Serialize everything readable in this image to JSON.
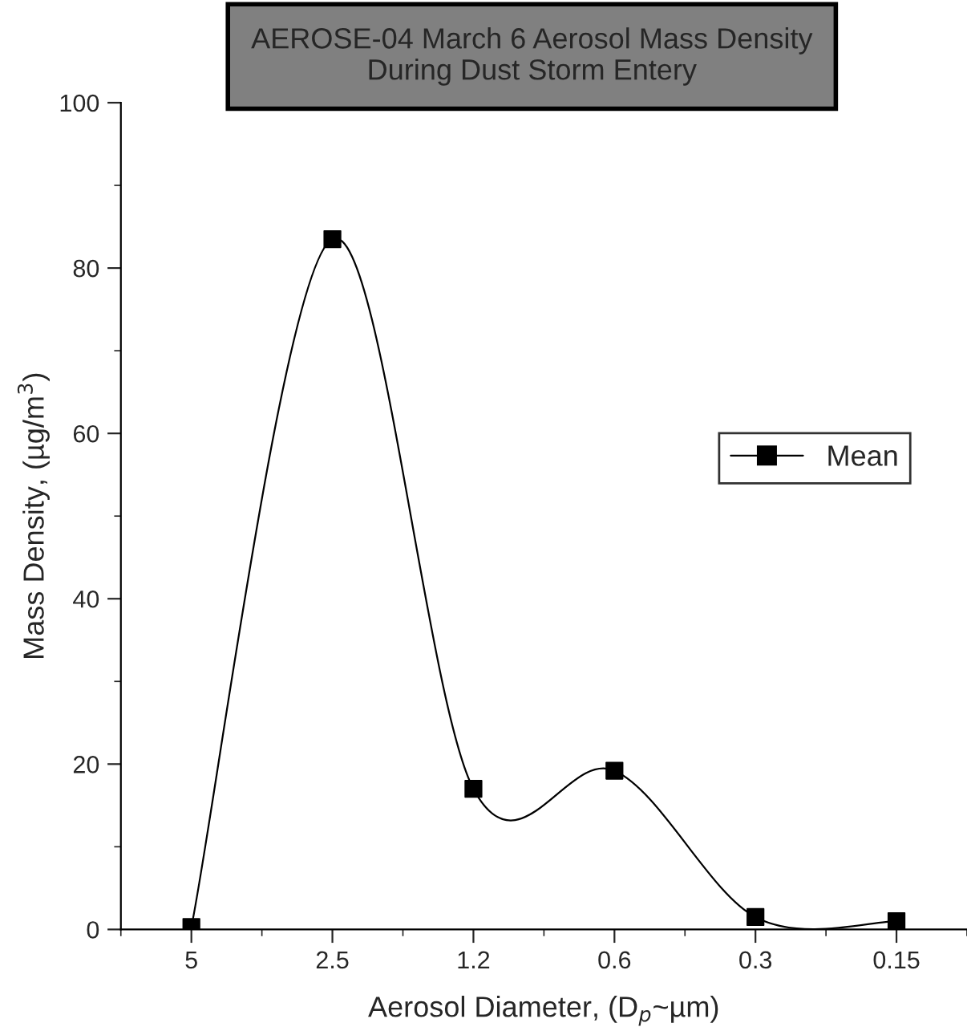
{
  "chart_data": {
    "type": "line",
    "title": "AEROSE-04 March 6 Aerosol Mass Density\nDuring Dust Storm Entery",
    "xlabel": "Aerosol Diameter, (D$_{p}$~µm)",
    "ylabel": "Mass Density, (µg/m$^{3}$)",
    "categories": [
      "5",
      "2.5",
      "1.2",
      "0.6",
      "0.3",
      "0.15"
    ],
    "series": [
      {
        "name": "Mean",
        "color": "#000000",
        "values": [
          0.3,
          83.5,
          17,
          19.2,
          1.5,
          1
        ]
      }
    ],
    "ylim": [
      0,
      100
    ],
    "yticks": [
      0,
      20,
      40,
      60,
      80,
      100
    ],
    "grid": false,
    "legend": "right",
    "marker": "square",
    "line_style": "solid"
  }
}
